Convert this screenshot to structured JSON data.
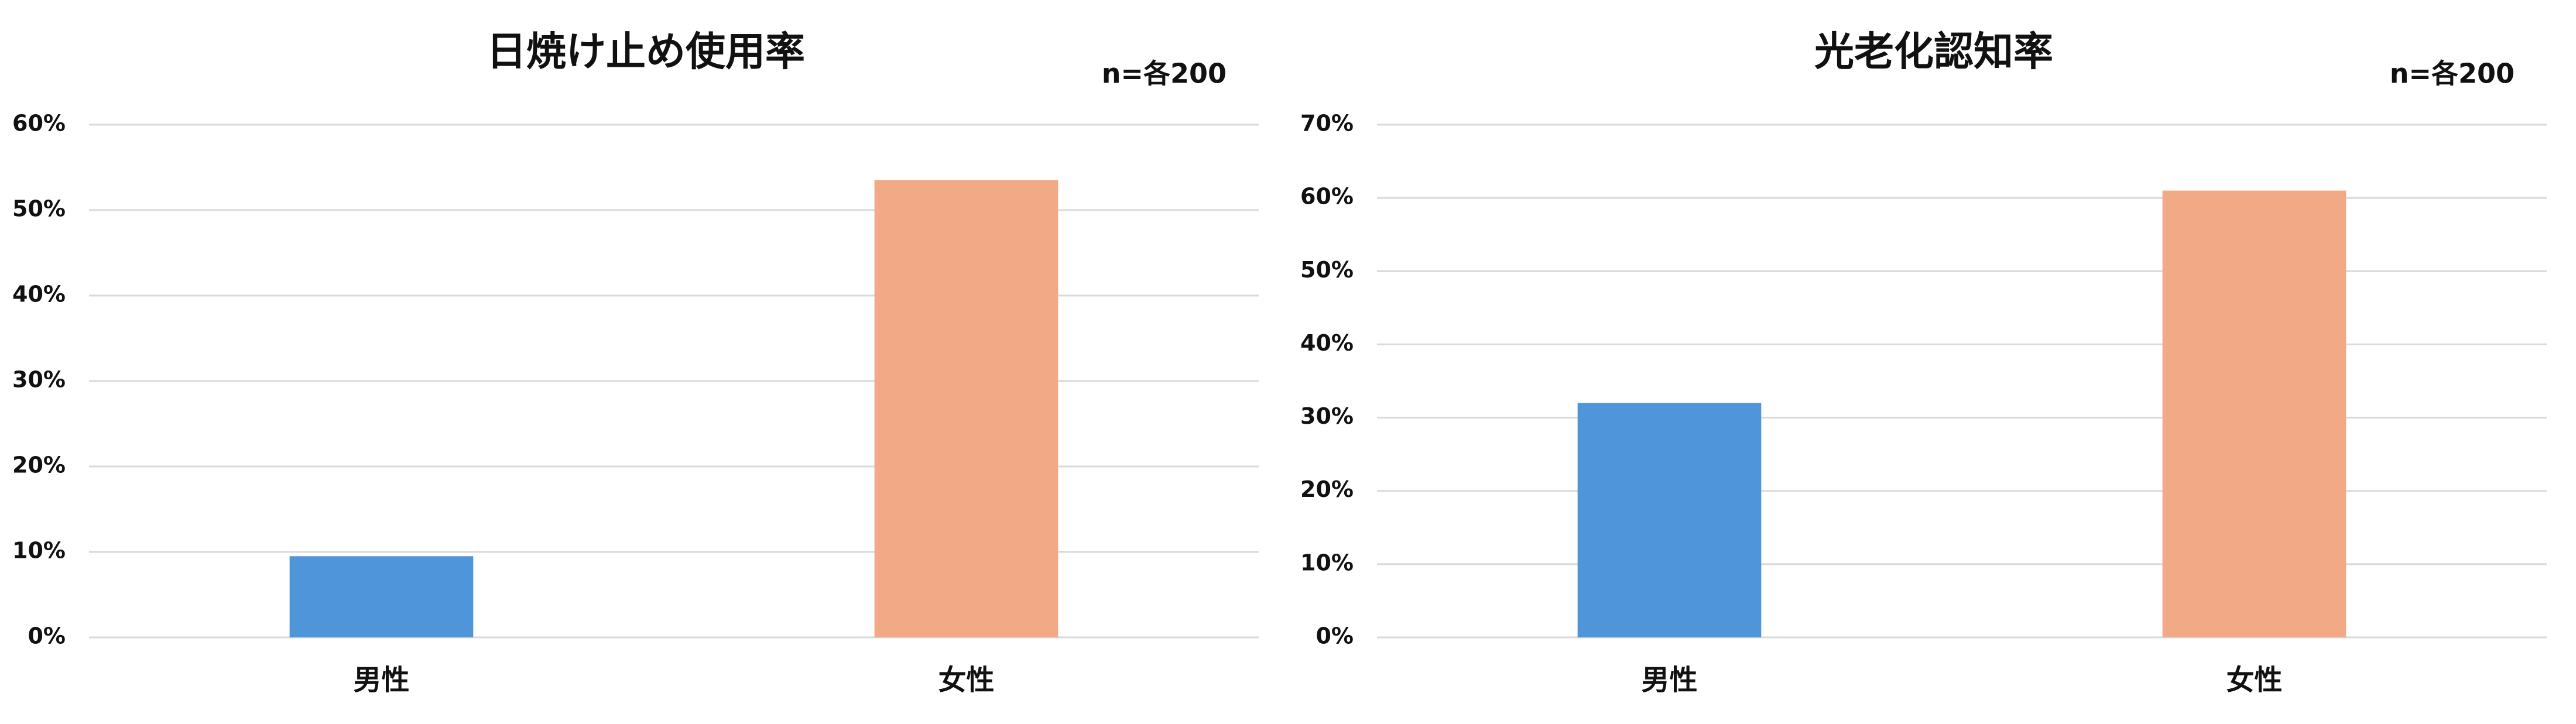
{
  "chart_data": [
    {
      "type": "bar",
      "title": "日焼け止め使用率",
      "subtitle": "n=各200",
      "categories": [
        "男性",
        "女性"
      ],
      "values": [
        9.5,
        53.5
      ],
      "colors": [
        "#4f95d9",
        "#f2a985"
      ],
      "ylim": [
        0,
        60
      ],
      "yticks": [
        {
          "value": 0,
          "label": "0%"
        },
        {
          "value": 10,
          "label": "10%"
        },
        {
          "value": 20,
          "label": "20%"
        },
        {
          "value": 30,
          "label": "30%"
        },
        {
          "value": 40,
          "label": "40%"
        },
        {
          "value": 50,
          "label": "50%"
        },
        {
          "value": 60,
          "label": "60%"
        }
      ],
      "grid": true
    },
    {
      "type": "bar",
      "title": "光老化認知率",
      "subtitle": "n=各200",
      "categories": [
        "男性",
        "女性"
      ],
      "values": [
        32,
        61
      ],
      "colors": [
        "#4f95d9",
        "#f2a985"
      ],
      "ylim": [
        0,
        70
      ],
      "yticks": [
        {
          "value": 0,
          "label": "0%"
        },
        {
          "value": 10,
          "label": "10%"
        },
        {
          "value": 20,
          "label": "20%"
        },
        {
          "value": 30,
          "label": "30%"
        },
        {
          "value": 40,
          "label": "40%"
        },
        {
          "value": 50,
          "label": "50%"
        },
        {
          "value": 60,
          "label": "60%"
        },
        {
          "value": 70,
          "label": "70%"
        }
      ],
      "grid": true
    }
  ]
}
